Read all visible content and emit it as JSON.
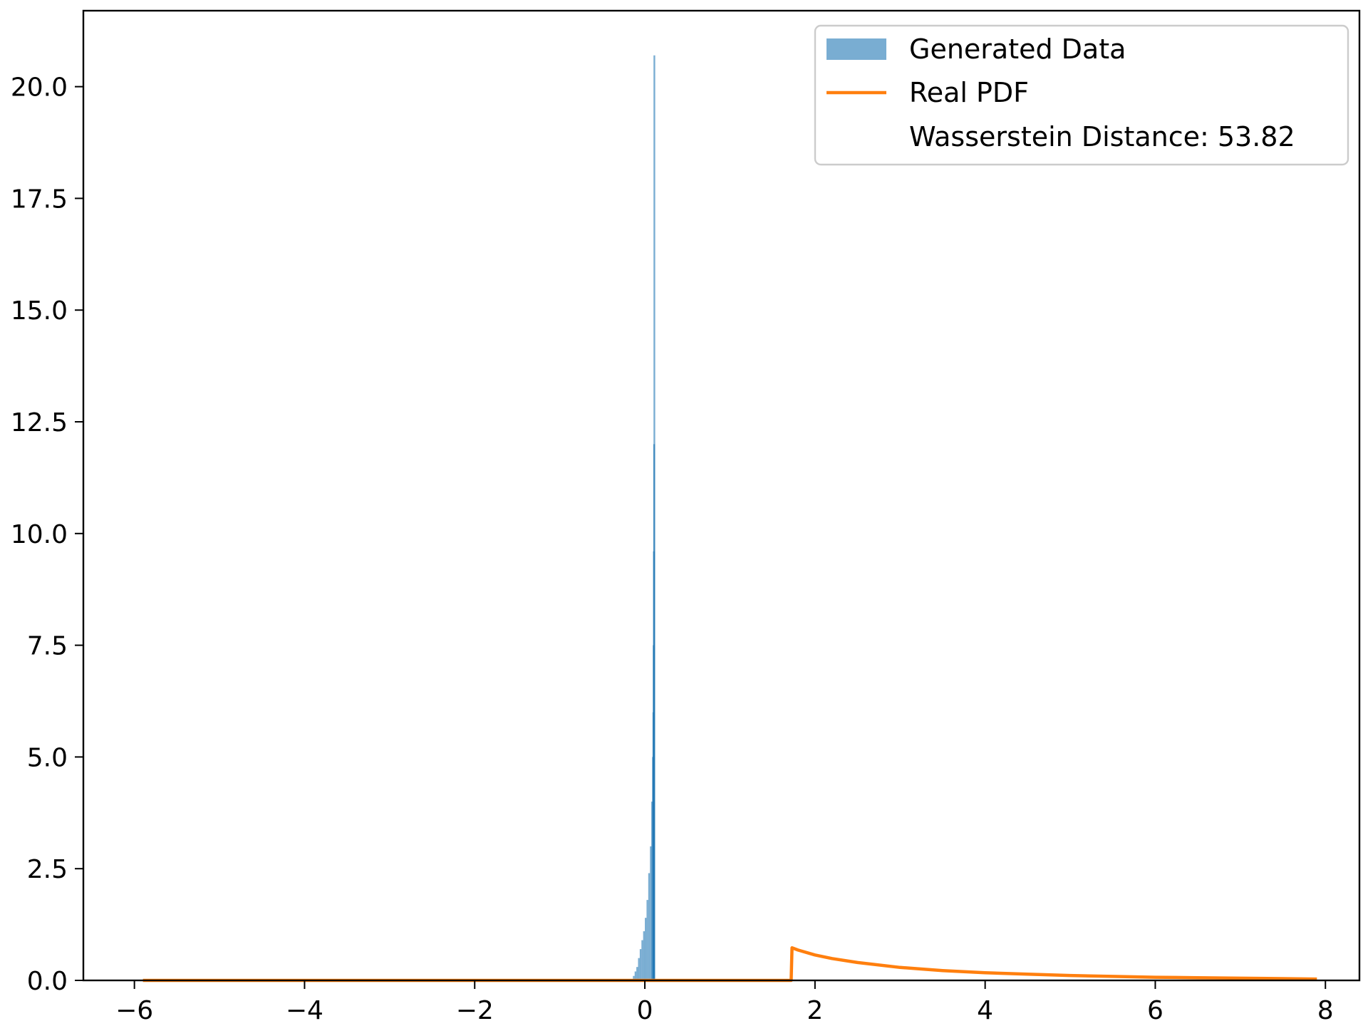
{
  "chart_data": {
    "type": "histogram",
    "title": "",
    "xlabel": "",
    "ylabel": "",
    "xlim": [
      -6.6,
      8.4
    ],
    "ylim": [
      0,
      21.7
    ],
    "x_ticks": [
      -6,
      -4,
      -2,
      0,
      2,
      4,
      6,
      8
    ],
    "x_tick_labels": [
      "−6",
      "−4",
      "−2",
      "0",
      "2",
      "4",
      "6",
      "8"
    ],
    "y_ticks": [
      0,
      2.5,
      5,
      7.5,
      10,
      12.5,
      15,
      17.5,
      20
    ],
    "y_tick_labels": [
      "0.0",
      "2.5",
      "5.0",
      "7.5",
      "10.0",
      "12.5",
      "15.0",
      "17.5",
      "20.0"
    ],
    "grid": false,
    "legend_position": "top-right",
    "series": [
      {
        "name": "Generated Data",
        "kind": "histogram",
        "color": "#1f77b4",
        "opacity": 0.6,
        "bin_width": 0.02,
        "bins": [
          [
            -0.13,
            0.1
          ],
          [
            -0.11,
            0.2
          ],
          [
            -0.09,
            0.3
          ],
          [
            -0.07,
            0.5
          ],
          [
            -0.05,
            0.7
          ],
          [
            -0.03,
            0.9
          ],
          [
            -0.01,
            1.1
          ],
          [
            0.01,
            1.4
          ],
          [
            0.03,
            1.8
          ],
          [
            0.05,
            2.4
          ],
          [
            0.07,
            3.0
          ],
          [
            0.085,
            4.0
          ],
          [
            0.095,
            5.0
          ],
          [
            0.1,
            6.0
          ],
          [
            0.103,
            7.5
          ],
          [
            0.106,
            9.6
          ],
          [
            0.109,
            12.0
          ],
          [
            0.112,
            20.7
          ]
        ]
      },
      {
        "name": "Real PDF",
        "kind": "line",
        "color": "#ff7f0e",
        "x": [
          -5.9,
          1.72,
          1.73,
          1.8,
          2.0,
          2.2,
          2.5,
          3.0,
          3.5,
          4.0,
          4.5,
          5.0,
          5.5,
          6.0,
          6.5,
          7.0,
          7.5,
          7.9
        ],
        "y": [
          0,
          0,
          0.73,
          0.68,
          0.57,
          0.49,
          0.4,
          0.29,
          0.22,
          0.17,
          0.14,
          0.11,
          0.09,
          0.07,
          0.06,
          0.05,
          0.04,
          0.03
        ]
      }
    ],
    "legend": {
      "entries": [
        {
          "label": "Generated Data",
          "marker": "patch",
          "color": "#1f77b4"
        },
        {
          "label": "Real PDF",
          "marker": "line",
          "color": "#ff7f0e"
        },
        {
          "label": "Wasserstein Distance: 53.82",
          "marker": "none"
        }
      ]
    }
  }
}
